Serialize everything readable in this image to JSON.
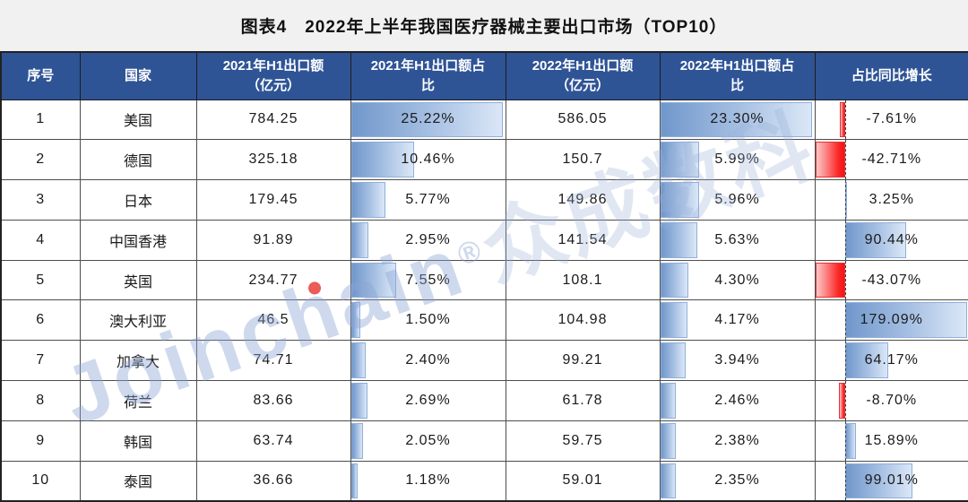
{
  "page": {
    "background": "#f1f1f1",
    "title": "图表4　2022年上半年我国医疗器械主要出口市场（TOP10）"
  },
  "watermark": {
    "brand": "Joinchain",
    "reg": "®",
    "cn": "众成数科"
  },
  "table": {
    "header_bg": "#2F5496",
    "columns": [
      "序号",
      "国家",
      "2021年H1出口额\n（亿元）",
      "2021年H1出口额占\n比",
      "2022年H1出口额\n（亿元）",
      "2022年H1出口额占\n比",
      "占比同比增长"
    ],
    "rows_display": [
      [
        "1",
        "美国",
        "784.25",
        "25.22%",
        "586.05",
        "23.30%",
        "-7.61%"
      ],
      [
        "2",
        "德国",
        "325.18",
        "10.46%",
        "150.7",
        "5.99%",
        "-42.71%"
      ],
      [
        "3",
        "日本",
        "179.45",
        "5.77%",
        "149.86",
        "5.96%",
        "3.25%"
      ],
      [
        "4",
        "中国香港",
        "91.89",
        "2.95%",
        "141.54",
        "5.63%",
        "90.44%"
      ],
      [
        "5",
        "英国",
        "234.77",
        "7.55%",
        "108.1",
        "4.30%",
        "-43.07%"
      ],
      [
        "6",
        "澳大利亚",
        "46.5",
        "1.50%",
        "104.98",
        "4.17%",
        "179.09%"
      ],
      [
        "7",
        "加拿大",
        "74.71",
        "2.40%",
        "99.21",
        "3.94%",
        "64.17%"
      ],
      [
        "8",
        "荷兰",
        "83.66",
        "2.69%",
        "61.78",
        "2.46%",
        "-8.70%"
      ],
      [
        "9",
        "韩国",
        "63.74",
        "2.05%",
        "59.75",
        "2.38%",
        "15.89%"
      ],
      [
        "10",
        "泰国",
        "36.66",
        "1.18%",
        "59.01",
        "2.35%",
        "99.01%"
      ]
    ],
    "databar_colors": {
      "positive_fill": "#7097CB",
      "positive_border": "#8FAFDB",
      "negative_fill": "#FF1A1A",
      "negative_border": "#E43434"
    }
  },
  "chart_data": {
    "type": "table",
    "title": "图表4　2022年上半年我国医疗器械主要出口市场（TOP10）",
    "categories": [
      "美国",
      "德国",
      "日本",
      "中国香港",
      "英国",
      "澳大利亚",
      "加拿大",
      "荷兰",
      "韩国",
      "泰国"
    ],
    "series": [
      {
        "name": "2021年H1出口额（亿元）",
        "values": [
          784.25,
          325.18,
          179.45,
          91.89,
          234.77,
          46.5,
          74.71,
          83.66,
          63.74,
          36.66
        ]
      },
      {
        "name": "2021年H1出口额占比(%)",
        "values": [
          25.22,
          10.46,
          5.77,
          2.95,
          7.55,
          1.5,
          2.4,
          2.69,
          2.05,
          1.18
        ]
      },
      {
        "name": "2022年H1出口额（亿元）",
        "values": [
          586.05,
          150.7,
          149.86,
          141.54,
          108.1,
          104.98,
          99.21,
          61.78,
          59.75,
          59.01
        ]
      },
      {
        "name": "2022年H1出口额占比(%)",
        "values": [
          23.3,
          5.99,
          5.96,
          5.63,
          4.3,
          4.17,
          3.94,
          2.46,
          2.38,
          2.35
        ]
      },
      {
        "name": "占比同比增长(%)",
        "values": [
          -7.61,
          -42.71,
          3.25,
          90.44,
          -43.07,
          179.09,
          64.17,
          -8.7,
          15.89,
          99.01
        ]
      }
    ],
    "databars": {
      "share_2021_scale_max": 25.22,
      "share_2022_scale_max": 23.3,
      "growth_axis_min": -43.07,
      "growth_axis_max": 179.09,
      "growth_zero_axis_style": "dashed vertical line, negatives red to the left, positives blue to the right"
    }
  }
}
